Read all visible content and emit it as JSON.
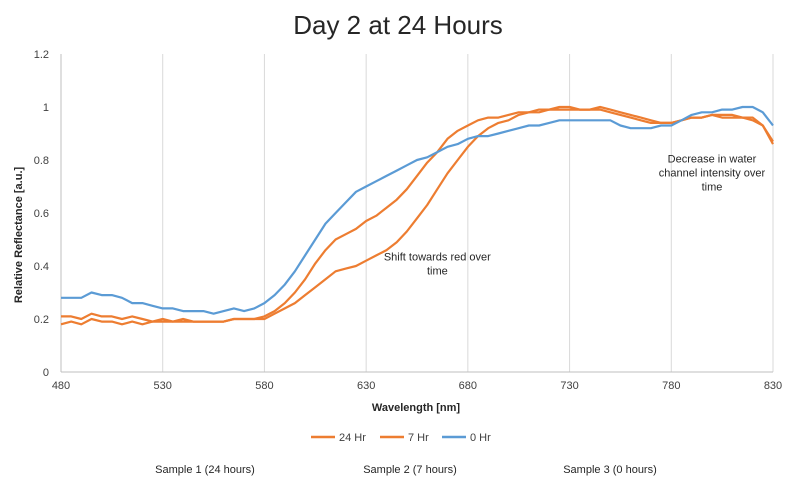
{
  "chart_data": {
    "type": "line",
    "title": "Day 2 at 24 Hours",
    "xlabel": "Wavelength [nm]",
    "ylabel": "Relative Reflectance [a.u.]",
    "xlim": [
      480,
      830
    ],
    "ylim": [
      0,
      1.2
    ],
    "xticks": [
      480,
      530,
      580,
      630,
      680,
      730,
      780,
      830
    ],
    "yticks": [
      0,
      0.2,
      0.4,
      0.6,
      0.8,
      1,
      1.2
    ],
    "ytick_labels": [
      "0",
      "0.2",
      "0.4",
      "0.6",
      "0.8",
      "1",
      "1.2"
    ],
    "grid": "vertical",
    "legend_position": "bottom",
    "series": [
      {
        "name": "24 Hr",
        "color": "#ED7D31",
        "points": [
          [
            480,
            0.21
          ],
          [
            485,
            0.21
          ],
          [
            490,
            0.2
          ],
          [
            495,
            0.22
          ],
          [
            500,
            0.21
          ],
          [
            505,
            0.21
          ],
          [
            510,
            0.2
          ],
          [
            515,
            0.21
          ],
          [
            520,
            0.2
          ],
          [
            525,
            0.19
          ],
          [
            530,
            0.2
          ],
          [
            535,
            0.19
          ],
          [
            540,
            0.2
          ],
          [
            545,
            0.19
          ],
          [
            550,
            0.19
          ],
          [
            555,
            0.19
          ],
          [
            560,
            0.19
          ],
          [
            565,
            0.2
          ],
          [
            570,
            0.2
          ],
          [
            575,
            0.2
          ],
          [
            580,
            0.21
          ],
          [
            585,
            0.23
          ],
          [
            590,
            0.26
          ],
          [
            595,
            0.3
          ],
          [
            600,
            0.35
          ],
          [
            605,
            0.41
          ],
          [
            610,
            0.46
          ],
          [
            615,
            0.5
          ],
          [
            620,
            0.52
          ],
          [
            625,
            0.54
          ],
          [
            630,
            0.57
          ],
          [
            635,
            0.59
          ],
          [
            640,
            0.62
          ],
          [
            645,
            0.65
          ],
          [
            650,
            0.69
          ],
          [
            655,
            0.74
          ],
          [
            660,
            0.79
          ],
          [
            665,
            0.83
          ],
          [
            670,
            0.88
          ],
          [
            675,
            0.91
          ],
          [
            680,
            0.93
          ],
          [
            685,
            0.95
          ],
          [
            690,
            0.96
          ],
          [
            695,
            0.96
          ],
          [
            700,
            0.97
          ],
          [
            705,
            0.98
          ],
          [
            710,
            0.98
          ],
          [
            715,
            0.99
          ],
          [
            720,
            0.99
          ],
          [
            725,
            1.0
          ],
          [
            730,
            1.0
          ],
          [
            735,
            0.99
          ],
          [
            740,
            0.99
          ],
          [
            745,
            0.99
          ],
          [
            750,
            0.98
          ],
          [
            755,
            0.97
          ],
          [
            760,
            0.96
          ],
          [
            765,
            0.95
          ],
          [
            770,
            0.94
          ],
          [
            775,
            0.94
          ],
          [
            780,
            0.94
          ],
          [
            785,
            0.95
          ],
          [
            790,
            0.96
          ],
          [
            795,
            0.96
          ],
          [
            800,
            0.97
          ],
          [
            805,
            0.97
          ],
          [
            810,
            0.97
          ],
          [
            815,
            0.96
          ],
          [
            820,
            0.96
          ],
          [
            825,
            0.93
          ],
          [
            830,
            0.87
          ]
        ]
      },
      {
        "name": "7 Hr",
        "color": "#ED7D31",
        "points": [
          [
            480,
            0.18
          ],
          [
            485,
            0.19
          ],
          [
            490,
            0.18
          ],
          [
            495,
            0.2
          ],
          [
            500,
            0.19
          ],
          [
            505,
            0.19
          ],
          [
            510,
            0.18
          ],
          [
            515,
            0.19
          ],
          [
            520,
            0.18
          ],
          [
            525,
            0.19
          ],
          [
            530,
            0.19
          ],
          [
            535,
            0.19
          ],
          [
            540,
            0.19
          ],
          [
            545,
            0.19
          ],
          [
            550,
            0.19
          ],
          [
            555,
            0.19
          ],
          [
            560,
            0.19
          ],
          [
            565,
            0.2
          ],
          [
            570,
            0.2
          ],
          [
            575,
            0.2
          ],
          [
            580,
            0.2
          ],
          [
            585,
            0.22
          ],
          [
            590,
            0.24
          ],
          [
            595,
            0.26
          ],
          [
            600,
            0.29
          ],
          [
            605,
            0.32
          ],
          [
            610,
            0.35
          ],
          [
            615,
            0.38
          ],
          [
            620,
            0.39
          ],
          [
            625,
            0.4
          ],
          [
            630,
            0.42
          ],
          [
            635,
            0.44
          ],
          [
            640,
            0.46
          ],
          [
            645,
            0.49
          ],
          [
            650,
            0.53
          ],
          [
            655,
            0.58
          ],
          [
            660,
            0.63
          ],
          [
            665,
            0.69
          ],
          [
            670,
            0.75
          ],
          [
            675,
            0.8
          ],
          [
            680,
            0.85
          ],
          [
            685,
            0.89
          ],
          [
            690,
            0.92
          ],
          [
            695,
            0.94
          ],
          [
            700,
            0.95
          ],
          [
            705,
            0.97
          ],
          [
            710,
            0.98
          ],
          [
            715,
            0.98
          ],
          [
            720,
            0.99
          ],
          [
            725,
            0.99
          ],
          [
            730,
            0.99
          ],
          [
            735,
            0.99
          ],
          [
            740,
            0.99
          ],
          [
            745,
            1.0
          ],
          [
            750,
            0.99
          ],
          [
            755,
            0.98
          ],
          [
            760,
            0.97
          ],
          [
            765,
            0.96
          ],
          [
            770,
            0.95
          ],
          [
            775,
            0.94
          ],
          [
            780,
            0.94
          ],
          [
            785,
            0.95
          ],
          [
            790,
            0.96
          ],
          [
            795,
            0.96
          ],
          [
            800,
            0.97
          ],
          [
            805,
            0.96
          ],
          [
            810,
            0.96
          ],
          [
            815,
            0.96
          ],
          [
            820,
            0.95
          ],
          [
            825,
            0.93
          ],
          [
            830,
            0.86
          ]
        ]
      },
      {
        "name": "0 Hr",
        "color": "#5B9BD5",
        "points": [
          [
            480,
            0.28
          ],
          [
            485,
            0.28
          ],
          [
            490,
            0.28
          ],
          [
            495,
            0.3
          ],
          [
            500,
            0.29
          ],
          [
            505,
            0.29
          ],
          [
            510,
            0.28
          ],
          [
            515,
            0.26
          ],
          [
            520,
            0.26
          ],
          [
            525,
            0.25
          ],
          [
            530,
            0.24
          ],
          [
            535,
            0.24
          ],
          [
            540,
            0.23
          ],
          [
            545,
            0.23
          ],
          [
            550,
            0.23
          ],
          [
            555,
            0.22
          ],
          [
            560,
            0.23
          ],
          [
            565,
            0.24
          ],
          [
            570,
            0.23
          ],
          [
            575,
            0.24
          ],
          [
            580,
            0.26
          ],
          [
            585,
            0.29
          ],
          [
            590,
            0.33
          ],
          [
            595,
            0.38
          ],
          [
            600,
            0.44
          ],
          [
            605,
            0.5
          ],
          [
            610,
            0.56
          ],
          [
            615,
            0.6
          ],
          [
            620,
            0.64
          ],
          [
            625,
            0.68
          ],
          [
            630,
            0.7
          ],
          [
            635,
            0.72
          ],
          [
            640,
            0.74
          ],
          [
            645,
            0.76
          ],
          [
            650,
            0.78
          ],
          [
            655,
            0.8
          ],
          [
            660,
            0.81
          ],
          [
            665,
            0.83
          ],
          [
            670,
            0.85
          ],
          [
            675,
            0.86
          ],
          [
            680,
            0.88
          ],
          [
            685,
            0.89
          ],
          [
            690,
            0.89
          ],
          [
            695,
            0.9
          ],
          [
            700,
            0.91
          ],
          [
            705,
            0.92
          ],
          [
            710,
            0.93
          ],
          [
            715,
            0.93
          ],
          [
            720,
            0.94
          ],
          [
            725,
            0.95
          ],
          [
            730,
            0.95
          ],
          [
            735,
            0.95
          ],
          [
            740,
            0.95
          ],
          [
            745,
            0.95
          ],
          [
            750,
            0.95
          ],
          [
            755,
            0.93
          ],
          [
            760,
            0.92
          ],
          [
            765,
            0.92
          ],
          [
            770,
            0.92
          ],
          [
            775,
            0.93
          ],
          [
            780,
            0.93
          ],
          [
            785,
            0.95
          ],
          [
            790,
            0.97
          ],
          [
            795,
            0.98
          ],
          [
            800,
            0.98
          ],
          [
            805,
            0.99
          ],
          [
            810,
            0.99
          ],
          [
            815,
            1.0
          ],
          [
            820,
            1.0
          ],
          [
            825,
            0.98
          ],
          [
            830,
            0.93
          ]
        ]
      }
    ],
    "annotations": [
      {
        "lines": [
          "Shift towards red over",
          "time"
        ],
        "x": 665,
        "y": 0.42
      },
      {
        "lines": [
          "Decrease in water",
          "channel intensity over",
          "time"
        ],
        "x": 800,
        "y": 0.79
      }
    ]
  },
  "footer": {
    "sample1": "Sample 1 (24 hours)",
    "sample2": "Sample 2 (7 hours)",
    "sample3": "Sample 3 (0 hours)"
  }
}
